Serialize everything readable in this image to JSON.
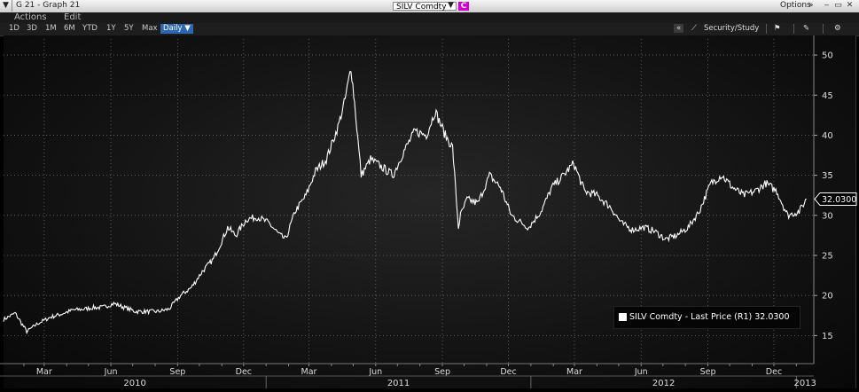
{
  "window": {
    "title": "G 21 - Graph 21",
    "security": "SILV Comdty",
    "c_badge": "C",
    "options_label": "Options",
    "options_icon": "double-chevron-up-icon"
  },
  "menu": {
    "actions": "Actions",
    "edit": "Edit"
  },
  "toolbar": {
    "periods": [
      "1D",
      "3D",
      "1M",
      "6M",
      "YTD",
      "1Y",
      "5Y",
      "Max"
    ],
    "frequency": "Daily ▼",
    "collapse": "«",
    "security_study": "Security/Study"
  },
  "colors": {
    "background": "#000000",
    "line": "#ffffff",
    "accent_blue": "#2e67b1",
    "badge_magenta": "#d400d4"
  },
  "legend": {
    "text": "SILV Comdty - Last Price (R1) 32.0300"
  },
  "last_price_label": "32.0300",
  "chart_data": {
    "type": "line",
    "series": [
      {
        "name": "SILV Comdty - Last Price (R1)",
        "x": [
          "2010-01-04",
          "2010-01-20",
          "2010-02-05",
          "2010-02-20",
          "2010-03-10",
          "2010-03-25",
          "2010-04-10",
          "2010-04-25",
          "2010-05-08",
          "2010-05-20",
          "2010-06-05",
          "2010-06-20",
          "2010-07-05",
          "2010-07-20",
          "2010-08-05",
          "2010-08-20",
          "2010-09-05",
          "2010-09-20",
          "2010-10-05",
          "2010-10-20",
          "2010-11-02",
          "2010-11-09",
          "2010-11-20",
          "2010-12-05",
          "2010-12-20",
          "2011-01-05",
          "2011-01-20",
          "2011-01-28",
          "2011-02-10",
          "2011-02-25",
          "2011-03-10",
          "2011-03-25",
          "2011-04-10",
          "2011-04-20",
          "2011-04-28",
          "2011-05-03",
          "2011-05-12",
          "2011-05-25",
          "2011-06-10",
          "2011-06-25",
          "2011-07-10",
          "2011-07-25",
          "2011-08-10",
          "2011-08-22",
          "2011-09-05",
          "2011-09-15",
          "2011-09-23",
          "2011-09-26",
          "2011-10-05",
          "2011-10-20",
          "2011-11-05",
          "2011-11-20",
          "2011-12-05",
          "2011-12-20",
          "2011-12-29",
          "2012-01-15",
          "2012-01-30",
          "2012-02-15",
          "2012-02-29",
          "2012-03-15",
          "2012-04-01",
          "2012-04-20",
          "2012-05-05",
          "2012-05-20",
          "2012-06-05",
          "2012-06-20",
          "2012-07-05",
          "2012-07-20",
          "2012-08-05",
          "2012-08-20",
          "2012-09-05",
          "2012-09-20",
          "2012-10-05",
          "2012-10-20",
          "2012-11-05",
          "2012-11-20",
          "2012-12-05",
          "2012-12-20",
          "2013-01-05",
          "2013-01-15"
        ],
        "y": [
          17.0,
          17.8,
          15.5,
          16.5,
          17.3,
          17.7,
          18.2,
          18.3,
          18.5,
          18.5,
          19.0,
          18.5,
          18.0,
          18.0,
          18.0,
          18.3,
          20.0,
          21.0,
          23.0,
          24.5,
          27.0,
          28.5,
          27.5,
          29.5,
          29.8,
          29.0,
          27.5,
          27.0,
          30.5,
          32.5,
          35.5,
          37.0,
          41.0,
          44.5,
          48.5,
          44.0,
          35.0,
          37.0,
          36.0,
          35.0,
          38.0,
          40.5,
          40.0,
          43.0,
          40.0,
          38.5,
          28.5,
          30.0,
          32.0,
          31.5,
          35.0,
          33.5,
          30.0,
          29.0,
          28.5,
          30.5,
          33.5,
          35.0,
          36.5,
          33.0,
          32.5,
          31.0,
          29.0,
          28.2,
          28.5,
          28.0,
          27.0,
          27.5,
          28.5,
          30.5,
          34.0,
          35.0,
          33.5,
          32.5,
          33.0,
          34.0,
          33.0,
          30.0,
          30.5,
          32.03
        ]
      }
    ],
    "x_tick_labels": [
      "Mar",
      "Jun",
      "Sep",
      "Dec",
      "Mar",
      "Jun",
      "Sep",
      "Dec",
      "Mar",
      "Jun",
      "Sep",
      "Dec"
    ],
    "year_labels": [
      "2010",
      "2011",
      "2012",
      "2013"
    ],
    "y_tick_labels": [
      "50",
      "45",
      "40",
      "35",
      "30",
      "25",
      "20",
      "15"
    ],
    "xlim": [
      "2010-01-04",
      "2013-01-25"
    ],
    "ylim": [
      11.5,
      52
    ],
    "grid": true,
    "legend_position": "bottom-right",
    "last_value": 32.03
  }
}
